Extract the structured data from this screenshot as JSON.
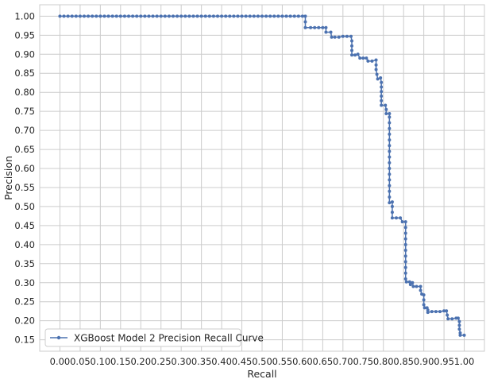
{
  "chart_data": {
    "type": "line",
    "xlabel": "Recall",
    "ylabel": "Precision",
    "xlim": [
      -0.05,
      1.05
    ],
    "ylim": [
      0.12,
      1.03
    ],
    "xticks": [
      "0.00",
      "0.05",
      "0.10",
      "0.15",
      "0.20",
      "0.25",
      "0.30",
      "0.35",
      "0.40",
      "0.45",
      "0.50",
      "0.55",
      "0.60",
      "0.65",
      "0.70",
      "0.75",
      "0.80",
      "0.85",
      "0.90",
      "0.95",
      "1.00"
    ],
    "yticks": [
      "0.15",
      "0.20",
      "0.25",
      "0.30",
      "0.35",
      "0.40",
      "0.45",
      "0.50",
      "0.55",
      "0.60",
      "0.65",
      "0.70",
      "0.75",
      "0.80",
      "0.85",
      "0.90",
      "0.95",
      "1.00"
    ],
    "grid": true,
    "legend_position": "lower-left",
    "series": [
      {
        "name": "XGBoost Model 2 Precision Recall Curve",
        "color": "#4c72b0",
        "marker": "dot",
        "points": [
          [
            0.0,
            1.0
          ],
          [
            0.01,
            1.0
          ],
          [
            0.02,
            1.0
          ],
          [
            0.03,
            1.0
          ],
          [
            0.04,
            1.0
          ],
          [
            0.05,
            1.0
          ],
          [
            0.06,
            1.0
          ],
          [
            0.07,
            1.0
          ],
          [
            0.08,
            1.0
          ],
          [
            0.09,
            1.0
          ],
          [
            0.1,
            1.0
          ],
          [
            0.11,
            1.0
          ],
          [
            0.12,
            1.0
          ],
          [
            0.13,
            1.0
          ],
          [
            0.14,
            1.0
          ],
          [
            0.15,
            1.0
          ],
          [
            0.16,
            1.0
          ],
          [
            0.17,
            1.0
          ],
          [
            0.18,
            1.0
          ],
          [
            0.19,
            1.0
          ],
          [
            0.2,
            1.0
          ],
          [
            0.21,
            1.0
          ],
          [
            0.22,
            1.0
          ],
          [
            0.23,
            1.0
          ],
          [
            0.24,
            1.0
          ],
          [
            0.25,
            1.0
          ],
          [
            0.26,
            1.0
          ],
          [
            0.27,
            1.0
          ],
          [
            0.28,
            1.0
          ],
          [
            0.29,
            1.0
          ],
          [
            0.3,
            1.0
          ],
          [
            0.31,
            1.0
          ],
          [
            0.32,
            1.0
          ],
          [
            0.33,
            1.0
          ],
          [
            0.34,
            1.0
          ],
          [
            0.35,
            1.0
          ],
          [
            0.36,
            1.0
          ],
          [
            0.37,
            1.0
          ],
          [
            0.38,
            1.0
          ],
          [
            0.39,
            1.0
          ],
          [
            0.4,
            1.0
          ],
          [
            0.41,
            1.0
          ],
          [
            0.42,
            1.0
          ],
          [
            0.43,
            1.0
          ],
          [
            0.44,
            1.0
          ],
          [
            0.45,
            1.0
          ],
          [
            0.46,
            1.0
          ],
          [
            0.47,
            1.0
          ],
          [
            0.48,
            1.0
          ],
          [
            0.49,
            1.0
          ],
          [
            0.5,
            1.0
          ],
          [
            0.51,
            1.0
          ],
          [
            0.52,
            1.0
          ],
          [
            0.53,
            1.0
          ],
          [
            0.54,
            1.0
          ],
          [
            0.55,
            1.0
          ],
          [
            0.56,
            1.0
          ],
          [
            0.57,
            1.0
          ],
          [
            0.58,
            1.0
          ],
          [
            0.59,
            1.0
          ],
          [
            0.6,
            1.0
          ],
          [
            0.607,
            1.0
          ],
          [
            0.607,
            0.985
          ],
          [
            0.607,
            0.97
          ],
          [
            0.62,
            0.97
          ],
          [
            0.63,
            0.97
          ],
          [
            0.64,
            0.97
          ],
          [
            0.65,
            0.97
          ],
          [
            0.658,
            0.97
          ],
          [
            0.658,
            0.958
          ],
          [
            0.67,
            0.958
          ],
          [
            0.672,
            0.945
          ],
          [
            0.68,
            0.945
          ],
          [
            0.69,
            0.945
          ],
          [
            0.7,
            0.947
          ],
          [
            0.71,
            0.947
          ],
          [
            0.72,
            0.947
          ],
          [
            0.722,
            0.935
          ],
          [
            0.722,
            0.922
          ],
          [
            0.722,
            0.91
          ],
          [
            0.722,
            0.898
          ],
          [
            0.73,
            0.898
          ],
          [
            0.737,
            0.9
          ],
          [
            0.742,
            0.89
          ],
          [
            0.75,
            0.89
          ],
          [
            0.758,
            0.89
          ],
          [
            0.762,
            0.882
          ],
          [
            0.772,
            0.882
          ],
          [
            0.782,
            0.885
          ],
          [
            0.782,
            0.872
          ],
          [
            0.782,
            0.86
          ],
          [
            0.784,
            0.847
          ],
          [
            0.786,
            0.835
          ],
          [
            0.793,
            0.838
          ],
          [
            0.795,
            0.826
          ],
          [
            0.795,
            0.814
          ],
          [
            0.795,
            0.802
          ],
          [
            0.795,
            0.79
          ],
          [
            0.795,
            0.778
          ],
          [
            0.795,
            0.766
          ],
          [
            0.805,
            0.766
          ],
          [
            0.807,
            0.755
          ],
          [
            0.807,
            0.744
          ],
          [
            0.815,
            0.744
          ],
          [
            0.815,
            0.735
          ],
          [
            0.815,
            0.72
          ],
          [
            0.815,
            0.705
          ],
          [
            0.815,
            0.69
          ],
          [
            0.815,
            0.675
          ],
          [
            0.815,
            0.66
          ],
          [
            0.815,
            0.645
          ],
          [
            0.815,
            0.63
          ],
          [
            0.815,
            0.615
          ],
          [
            0.815,
            0.6
          ],
          [
            0.815,
            0.585
          ],
          [
            0.815,
            0.57
          ],
          [
            0.815,
            0.555
          ],
          [
            0.815,
            0.54
          ],
          [
            0.815,
            0.525
          ],
          [
            0.815,
            0.51
          ],
          [
            0.822,
            0.512
          ],
          [
            0.822,
            0.5
          ],
          [
            0.822,
            0.485
          ],
          [
            0.822,
            0.47
          ],
          [
            0.832,
            0.47
          ],
          [
            0.842,
            0.47
          ],
          [
            0.847,
            0.46
          ],
          [
            0.855,
            0.46
          ],
          [
            0.855,
            0.445
          ],
          [
            0.855,
            0.43
          ],
          [
            0.855,
            0.415
          ],
          [
            0.855,
            0.4
          ],
          [
            0.855,
            0.385
          ],
          [
            0.855,
            0.37
          ],
          [
            0.855,
            0.355
          ],
          [
            0.855,
            0.34
          ],
          [
            0.855,
            0.325
          ],
          [
            0.855,
            0.31
          ],
          [
            0.857,
            0.302
          ],
          [
            0.865,
            0.302
          ],
          [
            0.867,
            0.295
          ],
          [
            0.872,
            0.3
          ],
          [
            0.874,
            0.29
          ],
          [
            0.882,
            0.29
          ],
          [
            0.892,
            0.29
          ],
          [
            0.892,
            0.28
          ],
          [
            0.895,
            0.27
          ],
          [
            0.9,
            0.268
          ],
          [
            0.9,
            0.255
          ],
          [
            0.9,
            0.242
          ],
          [
            0.902,
            0.234
          ],
          [
            0.908,
            0.234
          ],
          [
            0.91,
            0.228
          ],
          [
            0.91,
            0.222
          ],
          [
            0.92,
            0.224
          ],
          [
            0.93,
            0.224
          ],
          [
            0.94,
            0.224
          ],
          [
            0.95,
            0.226
          ],
          [
            0.956,
            0.226
          ],
          [
            0.958,
            0.215
          ],
          [
            0.96,
            0.205
          ],
          [
            0.97,
            0.205
          ],
          [
            0.98,
            0.207
          ],
          [
            0.985,
            0.207
          ],
          [
            0.988,
            0.198
          ],
          [
            0.988,
            0.188
          ],
          [
            0.988,
            0.178
          ],
          [
            0.99,
            0.168
          ],
          [
            0.99,
            0.162
          ],
          [
            1.0,
            0.162
          ]
        ]
      }
    ]
  }
}
